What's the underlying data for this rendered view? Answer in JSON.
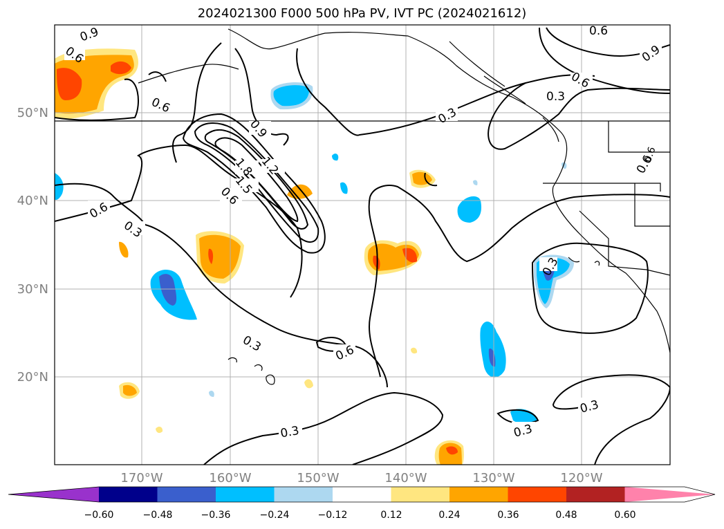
{
  "title": "2024021300 F000 500 hPa PV, IVT PC (2024021612)",
  "map": {
    "lat_labels": [
      "50°N",
      "40°N",
      "30°N",
      "20°N"
    ],
    "lon_labels": [
      "170°W",
      "160°W",
      "150°W",
      "140°W",
      "130°W",
      "120°W"
    ],
    "contour_labels": [
      "0.9",
      "0.6",
      "0.6",
      "0.6",
      "1.8",
      "1.5",
      "1.2",
      "0.9",
      "0.6",
      "0.6",
      "0.3",
      "0.3",
      "0.3",
      "0.6",
      "0.3",
      "0.6",
      "0.3",
      "0.6",
      "0.9",
      "0.6",
      "0.3",
      "0.3",
      "0.3"
    ]
  },
  "colorbar": {
    "colors": [
      "#9932cc",
      "#00008b",
      "#3a5fcd",
      "#00bfff",
      "#add8f0",
      "#ffffff",
      "#ffe680",
      "#ffa500",
      "#ff4500",
      "#b22222",
      "#ff82ab"
    ],
    "ticks": [
      "−0.60",
      "−0.48",
      "−0.36",
      "−0.24",
      "−0.12",
      "0.12",
      "0.24",
      "0.36",
      "0.48",
      "0.60"
    ]
  }
}
